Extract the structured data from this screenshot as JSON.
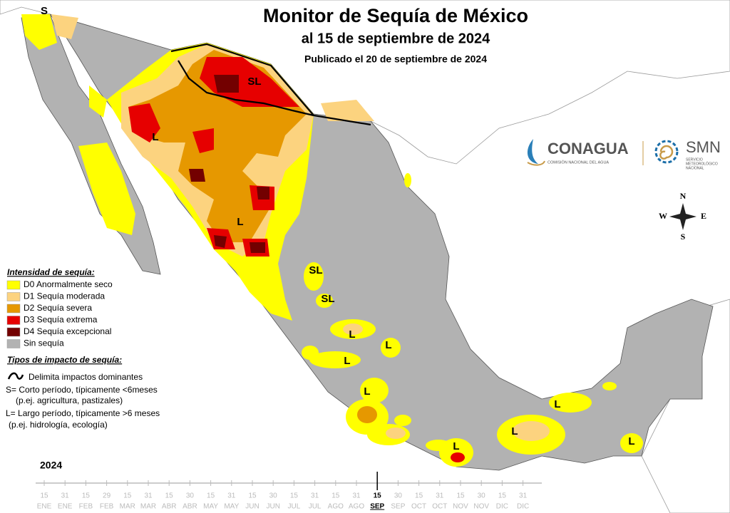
{
  "header": {
    "title": "Monitor de Sequía de México",
    "subtitle": "al 15 de septiembre de 2024",
    "published": "Publicado el 20 de septiembre de 2024"
  },
  "logos": {
    "conagua": "CONAGUA",
    "conagua_sub": "COMISIÓN NACIONAL DEL AGUA",
    "smn": "SMN",
    "smn_sub": [
      "SERVICIO",
      "METEOROLÓGICO",
      "NACIONAL"
    ]
  },
  "compass": {
    "n": "N",
    "s": "S",
    "e": "E",
    "w": "W"
  },
  "legend": {
    "title": "Intensidad de sequía:",
    "items": [
      {
        "label": "D0 Anormalmente seco",
        "color": "#ffff00"
      },
      {
        "label": "D1 Sequía moderada",
        "color": "#fcd37f"
      },
      {
        "label": "D2 Sequía severa",
        "color": "#e69800"
      },
      {
        "label": "D3 Sequía extrema",
        "color": "#e60000"
      },
      {
        "label": "D4 Sequía excepcional",
        "color": "#730000"
      },
      {
        "label": "Sin sequía",
        "color": "#b2b2b2"
      }
    ],
    "impact_title": "Tipos de impacto de sequía:",
    "impact_line": "Delimita impactos dominantes",
    "impact_notes": [
      "S= Corto período, típicamente <6meses",
      "(p.ej. agricultura, pastizales)",
      "L= Largo período, típicamente >6 meses",
      "(p.ej. hidrología, ecología)"
    ]
  },
  "map_labels": [
    "S",
    "SL",
    "L",
    "L",
    "SL",
    "SL",
    "L",
    "L",
    "L",
    "L",
    "L",
    "L",
    "L",
    "L"
  ],
  "timeline": {
    "year": "2024",
    "ticks": [
      {
        "day": "15",
        "month": "ENE"
      },
      {
        "day": "31",
        "month": "ENE"
      },
      {
        "day": "15",
        "month": "FEB"
      },
      {
        "day": "29",
        "month": "FEB"
      },
      {
        "day": "15",
        "month": "MAR"
      },
      {
        "day": "31",
        "month": "MAR"
      },
      {
        "day": "15",
        "month": "ABR"
      },
      {
        "day": "30",
        "month": "ABR"
      },
      {
        "day": "15",
        "month": "MAY"
      },
      {
        "day": "31",
        "month": "MAY"
      },
      {
        "day": "15",
        "month": "JUN"
      },
      {
        "day": "30",
        "month": "JUN"
      },
      {
        "day": "15",
        "month": "JUL"
      },
      {
        "day": "31",
        "month": "JUL"
      },
      {
        "day": "15",
        "month": "AGO"
      },
      {
        "day": "31",
        "month": "AGO"
      },
      {
        "day": "15",
        "month": "SEP",
        "current": true
      },
      {
        "day": "30",
        "month": "SEP"
      },
      {
        "day": "15",
        "month": "OCT"
      },
      {
        "day": "31",
        "month": "OCT"
      },
      {
        "day": "15",
        "month": "NOV"
      },
      {
        "day": "30",
        "month": "NOV"
      },
      {
        "day": "15",
        "month": "DIC"
      },
      {
        "day": "31",
        "month": "DIC"
      }
    ]
  }
}
